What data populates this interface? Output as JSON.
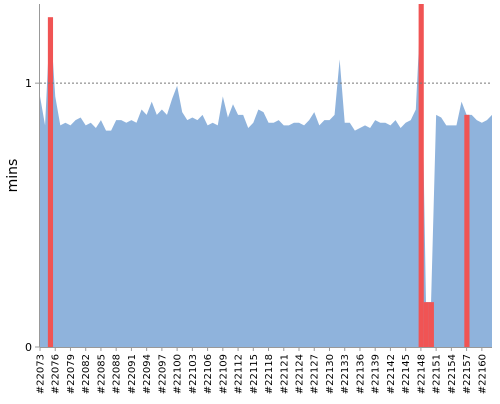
{
  "chart_data": {
    "type": "area",
    "title": "",
    "xlabel": "",
    "ylabel": "mins",
    "ylim": [
      0,
      1.3
    ],
    "yticks": [
      0,
      1
    ],
    "ytick_labels": [
      "0",
      "1"
    ],
    "reference_line": 1,
    "grid": false,
    "legend": "none",
    "colors": {
      "area": "#8fb3dc",
      "highlight": "#f05454",
      "axis": "#999999",
      "reference": "#777777",
      "text": "#000000"
    },
    "x_start_id": 22073,
    "x_end_id": 22161,
    "xtick_labels": [
      "#22073",
      "#22076",
      "#22079",
      "#22082",
      "#22085",
      "#22088",
      "#22091",
      "#22094",
      "#22097",
      "#22100",
      "#22103",
      "#22106",
      "#22109",
      "#22112",
      "#22115",
      "#22118",
      "#22121",
      "#22124",
      "#22127",
      "#22130",
      "#22133",
      "#22136",
      "#22139",
      "#22142",
      "#22145",
      "#22148",
      "#22151",
      "#22154",
      "#22157",
      "#22160"
    ],
    "series": [
      {
        "values": [
          0.95,
          0.84,
          1.25,
          0.95,
          0.84,
          0.85,
          0.84,
          0.86,
          0.87,
          0.84,
          0.85,
          0.83,
          0.86,
          0.82,
          0.82,
          0.86,
          0.86,
          0.85,
          0.86,
          0.85,
          0.9,
          0.88,
          0.93,
          0.88,
          0.9,
          0.88,
          0.94,
          0.99,
          0.89,
          0.86,
          0.87,
          0.86,
          0.88,
          0.84,
          0.85,
          0.84,
          0.95,
          0.87,
          0.92,
          0.88,
          0.88,
          0.83,
          0.85,
          0.9,
          0.89,
          0.85,
          0.85,
          0.86,
          0.84,
          0.84,
          0.85,
          0.85,
          0.84,
          0.86,
          0.89,
          0.84,
          0.86,
          0.86,
          0.88,
          1.09,
          0.85,
          0.85,
          0.82,
          0.83,
          0.84,
          0.83,
          0.86,
          0.85,
          0.85,
          0.84,
          0.86,
          0.83,
          0.85,
          0.86,
          0.9,
          1.3,
          0.17,
          0.17,
          0.88,
          0.87,
          0.84,
          0.84,
          0.84,
          0.93,
          0.88,
          0.88,
          0.86,
          0.85,
          0.86,
          0.88
        ]
      }
    ],
    "highlight_indices": [
      2,
      75,
      76,
      77,
      84
    ]
  }
}
